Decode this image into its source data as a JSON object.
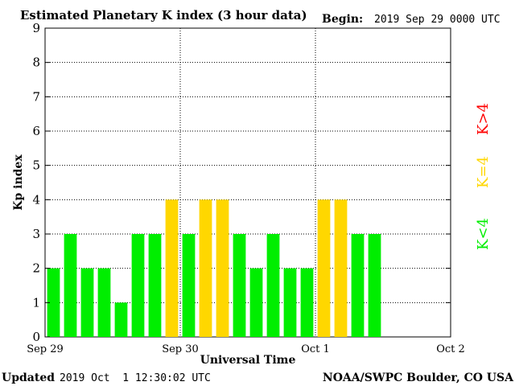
{
  "chart_data": {
    "type": "bar",
    "title": "Estimated Planetary K index (3 hour data)",
    "begin_label": "Begin:",
    "begin_value": "2019 Sep 29 0000 UTC",
    "xlabel": "Universal Time",
    "ylabel": "Kp index",
    "ylim": [
      0,
      9
    ],
    "yticks": [
      "0",
      "1",
      "2",
      "3",
      "4",
      "5",
      "6",
      "7",
      "8",
      "9"
    ],
    "xticks": [
      "Sep 29",
      "Sep 30",
      "Oct 1",
      "Oct 2"
    ],
    "x_slots": 24,
    "values": [
      2,
      3,
      2,
      2,
      1,
      3,
      3,
      4,
      3,
      4,
      4,
      3,
      2,
      3,
      2,
      2,
      4,
      4,
      3,
      3
    ],
    "legend": [
      {
        "label": "K<4",
        "color": "#00ee00"
      },
      {
        "label": "K=4",
        "color": "#ffd700"
      },
      {
        "label": "K>4",
        "color": "#ff0000"
      }
    ],
    "colors": {
      "below": "#00ee00",
      "equal": "#ffd700",
      "above": "#ff0000"
    },
    "grid": true
  },
  "footer": {
    "updated_label": "Updated",
    "updated_value": "2019 Oct  1 12:30:02 UTC",
    "credit": "NOAA/SWPC Boulder, CO USA"
  }
}
